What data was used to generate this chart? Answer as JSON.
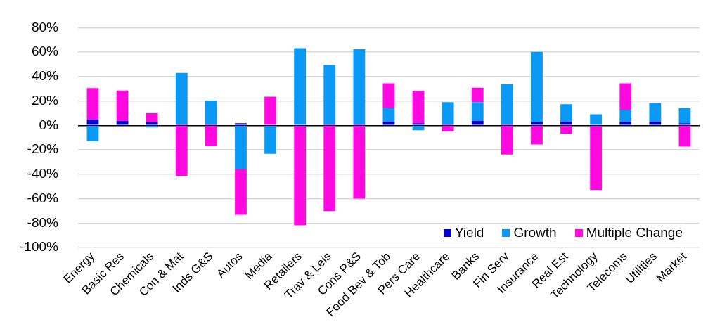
{
  "chart_data": {
    "type": "bar",
    "stacked": true,
    "grid": "y",
    "legend": "bottom right",
    "categories": [
      "Energy",
      "Basic Res",
      "Chemicals",
      "Con & Mat",
      "Inds G&S",
      "Autos",
      "Media",
      "Retailers",
      "Trav & Leis",
      "Cons P&S",
      "Food Bev & Tob",
      "Pers Care",
      "Healthcare",
      "Banks",
      "Fin Serv",
      "Insurance",
      "Real Est",
      "Technology",
      "Telecoms",
      "Utilities",
      "Market"
    ],
    "series": [
      {
        "name": "Yield",
        "color": "#0000cc",
        "values": [
          4.8,
          3.6,
          2.6,
          1.2,
          1.2,
          1.8,
          null,
          null,
          1,
          1.4,
          3.2,
          1.8,
          1.2,
          3.8,
          1.2,
          2.6,
          3.2,
          0,
          3.2,
          3.2,
          1.8
        ]
      },
      {
        "name": "Growth",
        "color": "#0999f5",
        "values": [
          -13.1,
          0,
          -1.6,
          41.8,
          19.1,
          -35.8,
          -23.3,
          63.3,
          48.5,
          61,
          10.9,
          -4,
          17.9,
          15.3,
          32.6,
          57.6,
          14.1,
          9.1,
          9.5,
          15.1,
          12.3
        ]
      },
      {
        "name": "Multiple Change",
        "color": "#ff09e0",
        "values": [
          25.8,
          25,
          7.4,
          -41.4,
          -16.9,
          -37.4,
          23.5,
          -81.9,
          -70.2,
          -60,
          20.3,
          26.6,
          -5,
          11.7,
          -23.9,
          -15.7,
          -6.8,
          -52.9,
          21.7,
          0,
          -17.3
        ]
      }
    ],
    "ylim": [
      -100,
      80
    ],
    "yticks": [
      {
        "value": -100,
        "label": "-100%"
      },
      {
        "value": -80,
        "label": "-80%"
      },
      {
        "value": -60,
        "label": "-60%"
      },
      {
        "value": -40,
        "label": "-40%"
      },
      {
        "value": -20,
        "label": "-20%"
      },
      {
        "value": 0,
        "label": "0%"
      },
      {
        "value": 20,
        "label": "20%"
      },
      {
        "value": 40,
        "label": "40%"
      },
      {
        "value": 60,
        "label": "60%"
      },
      {
        "value": 80,
        "label": "80%"
      }
    ]
  }
}
